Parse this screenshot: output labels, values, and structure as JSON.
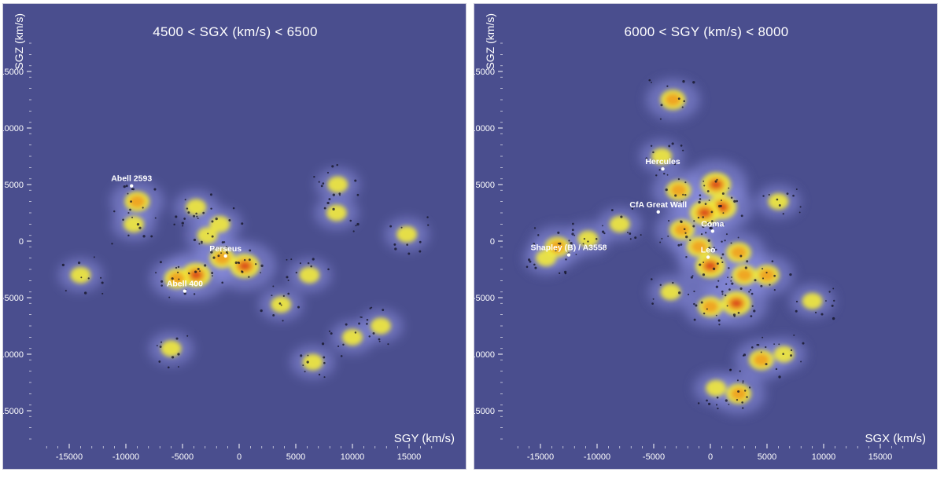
{
  "chart_data": [
    {
      "type": "heatmap",
      "title": "4500 < SGX (km/s) < 6500",
      "xlabel": "SGY (km/s)",
      "ylabel": "SGZ (km/s)",
      "xlim": [
        -17500,
        17500
      ],
      "ylim": [
        -17500,
        17500
      ],
      "xticks": [
        "-15000",
        "-10000",
        "-5000",
        "0",
        "5000",
        "10000",
        "15000"
      ],
      "yticks": [
        "15000",
        "10000",
        "5000",
        "0",
        "-5000",
        "-10000",
        "-15000"
      ],
      "colors": {
        "background": "#4a4e8e",
        "filament": "#8c90e0",
        "low": "#f2ea3a",
        "mid": "#f0a020",
        "high": "#d8401c",
        "label": "#ffffff"
      },
      "annotations": [
        {
          "label": "Abell 2593",
          "x": -9500,
          "y": 5300
        },
        {
          "label": "Perseus",
          "x": -1200,
          "y": -900
        },
        {
          "label": "Abell 400",
          "x": -4800,
          "y": -4000
        }
      ],
      "structures": [
        {
          "x": -9000,
          "y": 3500,
          "level": 2
        },
        {
          "x": -9300,
          "y": 1500,
          "level": 1
        },
        {
          "x": -3800,
          "y": 3000,
          "level": 1
        },
        {
          "x": -1700,
          "y": 1500,
          "level": 1
        },
        {
          "x": -1500,
          "y": -1500,
          "level": 2
        },
        {
          "x": 500,
          "y": -2200,
          "level": 3
        },
        {
          "x": -3800,
          "y": -3000,
          "level": 3
        },
        {
          "x": -5500,
          "y": -3300,
          "level": 2
        },
        {
          "x": 3700,
          "y": -5600,
          "level": 1
        },
        {
          "x": 8700,
          "y": 5000,
          "level": 1
        },
        {
          "x": 8600,
          "y": 2500,
          "level": 1
        },
        {
          "x": 12500,
          "y": -7500,
          "level": 1
        },
        {
          "x": 10000,
          "y": -8500,
          "level": 1
        },
        {
          "x": 6500,
          "y": -10700,
          "level": 1
        },
        {
          "x": -14000,
          "y": -3000,
          "level": 1
        },
        {
          "x": -6000,
          "y": -9500,
          "level": 1
        },
        {
          "x": 14800,
          "y": 600,
          "level": 1
        },
        {
          "x": 6200,
          "y": -3000,
          "level": 1
        },
        {
          "x": -2800,
          "y": 500,
          "level": 1
        }
      ]
    },
    {
      "type": "heatmap",
      "title": "6000 < SGY (km/s) < 8000",
      "xlabel": "SGX (km/s)",
      "ylabel": "SGZ (km/s)",
      "xlim": [
        -17500,
        17500
      ],
      "ylim": [
        -17500,
        17500
      ],
      "xticks": [
        "-15000",
        "-10000",
        "-5000",
        "0",
        "5000",
        "10000",
        "15000"
      ],
      "yticks": [
        "15000",
        "10000",
        "5000",
        "0",
        "-5000",
        "-10000",
        "-15000"
      ],
      "colors": {
        "background": "#4a4e8e",
        "filament": "#8c90e0",
        "low": "#f2ea3a",
        "mid": "#f0a020",
        "high": "#d8401c",
        "label": "#ffffff"
      },
      "annotations": [
        {
          "label": "Hercules",
          "x": -4200,
          "y": 6800
        },
        {
          "label": "CfA Great Wall",
          "x": -4600,
          "y": 3000
        },
        {
          "label": "Coma",
          "x": 200,
          "y": 1300
        },
        {
          "label": "Leo",
          "x": -200,
          "y": -1000
        },
        {
          "label": "Shapley (B) / A3558",
          "x": -12500,
          "y": -800
        }
      ],
      "structures": [
        {
          "x": -3300,
          "y": 12500,
          "level": 2
        },
        {
          "x": -4300,
          "y": 7500,
          "level": 1
        },
        {
          "x": -2800,
          "y": 4500,
          "level": 2
        },
        {
          "x": 500,
          "y": 5000,
          "level": 3
        },
        {
          "x": 1000,
          "y": 3000,
          "level": 3
        },
        {
          "x": -500,
          "y": 2500,
          "level": 3
        },
        {
          "x": -2500,
          "y": 1000,
          "level": 2
        },
        {
          "x": 2500,
          "y": -1000,
          "level": 2
        },
        {
          "x": 0,
          "y": -2200,
          "level": 3
        },
        {
          "x": -1000,
          "y": -500,
          "level": 2
        },
        {
          "x": 3000,
          "y": -3000,
          "level": 2
        },
        {
          "x": 5000,
          "y": -3000,
          "level": 2
        },
        {
          "x": 2300,
          "y": -5500,
          "level": 3
        },
        {
          "x": 0,
          "y": -5800,
          "level": 2
        },
        {
          "x": 9000,
          "y": -5300,
          "level": 1
        },
        {
          "x": 6000,
          "y": 3500,
          "level": 1
        },
        {
          "x": -13500,
          "y": -500,
          "level": 2
        },
        {
          "x": -10800,
          "y": 200,
          "level": 1
        },
        {
          "x": -8000,
          "y": 1500,
          "level": 1
        },
        {
          "x": -14500,
          "y": -1500,
          "level": 1
        },
        {
          "x": 4500,
          "y": -10500,
          "level": 2
        },
        {
          "x": 6500,
          "y": -10000,
          "level": 1
        },
        {
          "x": 2500,
          "y": -13500,
          "level": 2
        },
        {
          "x": 500,
          "y": -13000,
          "level": 1
        },
        {
          "x": -3500,
          "y": -4500,
          "level": 1
        }
      ]
    }
  ]
}
